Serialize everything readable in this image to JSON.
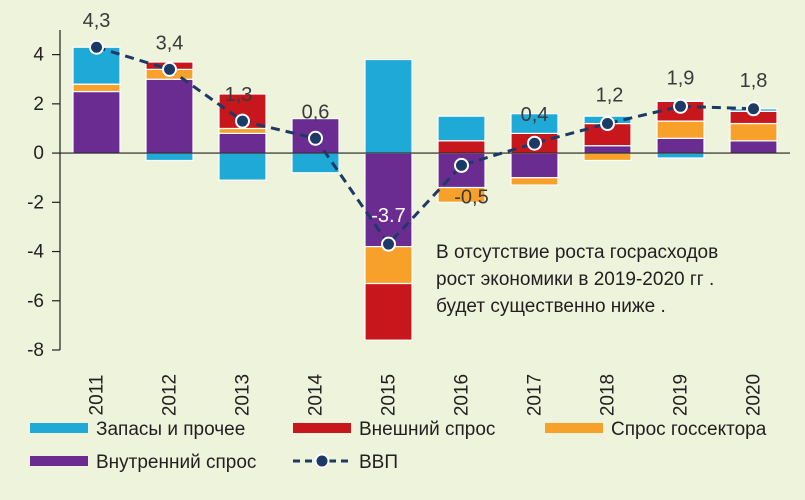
{
  "chart_data": {
    "type": "bar",
    "categories": [
      "2011",
      "2012",
      "2013",
      "2014",
      "2015",
      "2016",
      "2017",
      "2018",
      "2019",
      "2020"
    ],
    "series": [
      {
        "name": "Внутренний спрос",
        "color": "#6a2c91",
        "values": [
          2.5,
          3.0,
          0.8,
          1.4,
          -3.8,
          -1.4,
          -1.0,
          0.3,
          0.6,
          0.5
        ]
      },
      {
        "name": "Спрос госсектора",
        "color": "#f7a12b",
        "values": [
          0.3,
          0.4,
          0.2,
          0.0,
          -1.5,
          -0.6,
          -0.3,
          -0.3,
          0.7,
          0.7
        ]
      },
      {
        "name": "Внешний спрос",
        "color": "#c8161d",
        "values": [
          0.0,
          0.3,
          1.4,
          0.0,
          -2.3,
          0.5,
          0.8,
          0.9,
          0.8,
          0.5
        ]
      },
      {
        "name": "Запасы и прочее",
        "color": "#1fa9d6",
        "values": [
          1.5,
          -0.3,
          -1.1,
          -0.8,
          3.8,
          1.0,
          0.8,
          0.3,
          -0.2,
          0.1
        ]
      }
    ],
    "line": {
      "name": "ВВП",
      "color": "#1b3a66",
      "values": [
        4.3,
        3.4,
        1.3,
        0.6,
        -3.7,
        -0.5,
        0.4,
        1.2,
        1.9,
        1.8
      ],
      "labels": [
        "4,3",
        "3,4",
        "1,3",
        "0,6",
        "-3.7",
        "-0,5",
        "0,4",
        "1,2",
        "1,9",
        "1,8"
      ]
    },
    "ylim": [
      -8,
      5
    ],
    "yticks": [
      "-8",
      "-6",
      "-4",
      "-2",
      "0",
      "2",
      "4"
    ],
    "annotation": [
      "В отсутствие роста госрасходов",
      "рост экономики в 2019-2020 гг .",
      "будет существенно ниже ."
    ],
    "legend_position": "bottom",
    "legend_order": [
      "Запасы и прочее",
      "Внешний спрос",
      "Спрос госсектора",
      "Внутренний спрос",
      "ВВП"
    ]
  }
}
